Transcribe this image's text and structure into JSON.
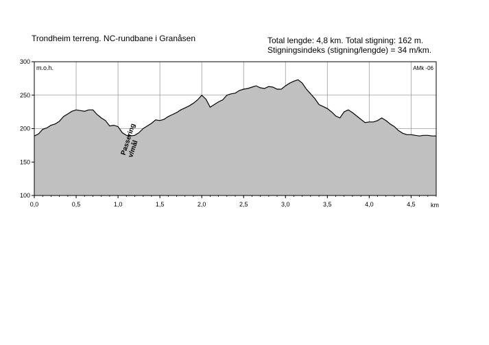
{
  "header": {
    "title": "Trondheim terreng. NC-rundbane i Granåsen",
    "stats_line1": "Total lengde: 4,8 km. Total stigning:   162 m.",
    "stats_line2": "Stigningsindeks (stigning/lengde) = 34 m/km."
  },
  "chart_data": {
    "type": "area",
    "ylabel": "m.o.h.",
    "xlabel": "km",
    "corner_label": "AMk -06",
    "annotation_line1": "Passering",
    "annotation_line2": "v/mål",
    "xlim": [
      0,
      4.8
    ],
    "ylim": [
      100,
      300
    ],
    "x_ticks": [
      0,
      0.5,
      1.0,
      1.5,
      2.0,
      2.5,
      3.0,
      3.5,
      4.0,
      4.5
    ],
    "x_tick_labels": [
      "0,0",
      "0,5",
      "1,0",
      "1,5",
      "2,0",
      "2,5",
      "3,0",
      "3,5",
      "4,0",
      "4,5"
    ],
    "y_ticks": [
      100,
      150,
      200,
      250,
      300
    ],
    "y_tick_labels": [
      "100",
      "150",
      "200",
      "250",
      "300"
    ],
    "grid": true,
    "fill_color": "#c0c0c0",
    "line_color": "#000000",
    "grid_color": "#9a9a9a",
    "x": [
      0.0,
      0.05,
      0.1,
      0.15,
      0.2,
      0.25,
      0.3,
      0.35,
      0.4,
      0.45,
      0.5,
      0.55,
      0.6,
      0.65,
      0.7,
      0.75,
      0.8,
      0.85,
      0.9,
      0.95,
      1.0,
      1.05,
      1.1,
      1.15,
      1.2,
      1.25,
      1.3,
      1.35,
      1.4,
      1.45,
      1.5,
      1.55,
      1.6,
      1.65,
      1.7,
      1.75,
      1.8,
      1.85,
      1.9,
      1.95,
      2.0,
      2.05,
      2.1,
      2.15,
      2.2,
      2.25,
      2.3,
      2.35,
      2.4,
      2.45,
      2.5,
      2.55,
      2.6,
      2.65,
      2.7,
      2.75,
      2.8,
      2.85,
      2.9,
      2.95,
      3.0,
      3.05,
      3.1,
      3.15,
      3.2,
      3.25,
      3.3,
      3.35,
      3.4,
      3.45,
      3.5,
      3.55,
      3.6,
      3.65,
      3.7,
      3.75,
      3.8,
      3.85,
      3.9,
      3.95,
      4.0,
      4.05,
      4.1,
      4.15,
      4.2,
      4.25,
      4.3,
      4.35,
      4.4,
      4.45,
      4.5,
      4.55,
      4.6,
      4.65,
      4.7,
      4.75,
      4.8
    ],
    "y": [
      189,
      192,
      199,
      201,
      205,
      207,
      211,
      218,
      222,
      226,
      228,
      227,
      226,
      228,
      228,
      221,
      216,
      212,
      204,
      205,
      203,
      194,
      190,
      189,
      190,
      194,
      200,
      204,
      208,
      213,
      212,
      214,
      218,
      221,
      224,
      228,
      231,
      234,
      238,
      243,
      250,
      244,
      232,
      236,
      240,
      243,
      250,
      252,
      253,
      257,
      259,
      260,
      262,
      264,
      261,
      260,
      263,
      262,
      259,
      259,
      264,
      268,
      271,
      273,
      268,
      259,
      252,
      245,
      236,
      233,
      230,
      225,
      219,
      216,
      225,
      228,
      224,
      219,
      214,
      209,
      210,
      210,
      212,
      216,
      212,
      207,
      203,
      197,
      193,
      191,
      191,
      190,
      189,
      190,
      190,
      189,
      189
    ]
  }
}
